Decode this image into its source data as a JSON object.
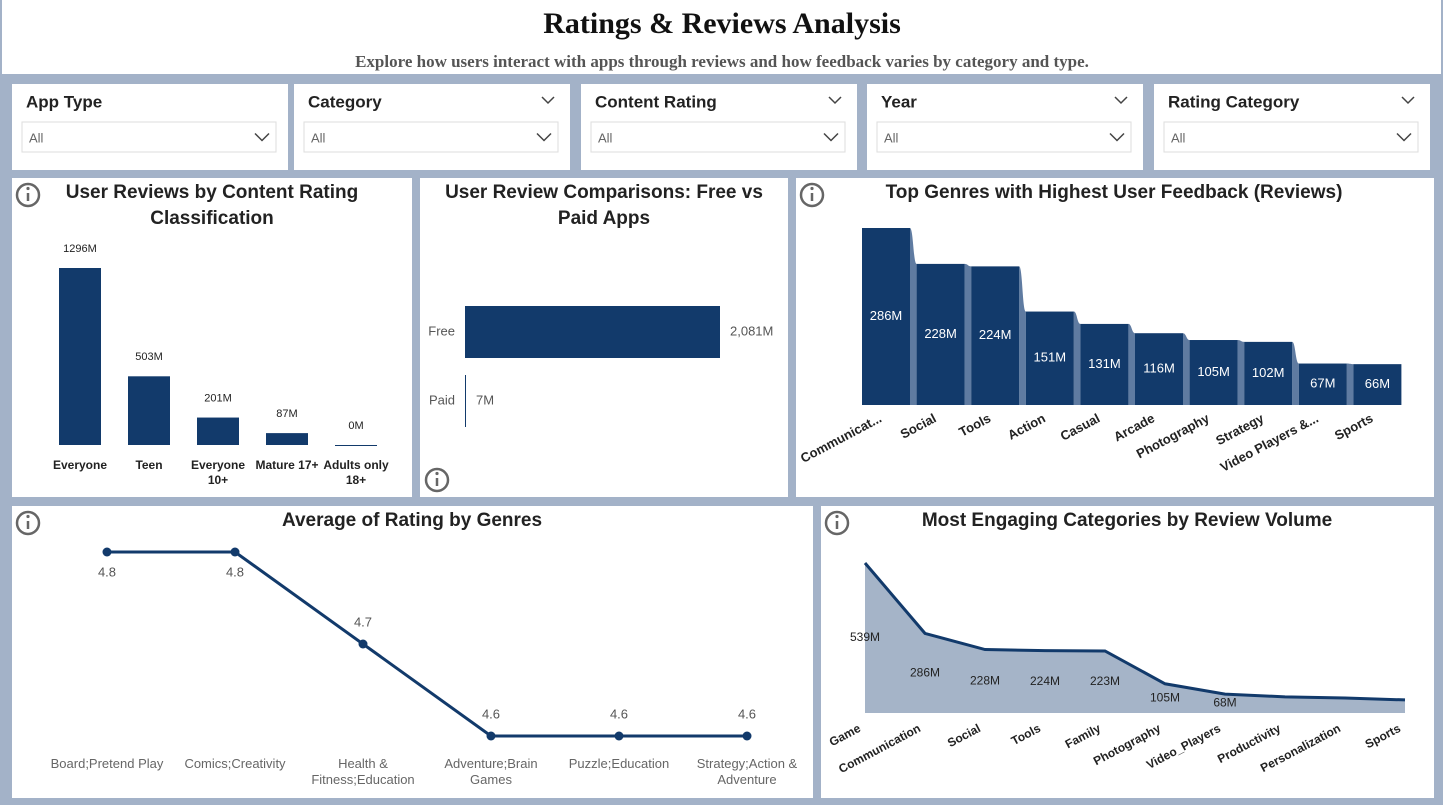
{
  "header": {
    "title": "Ratings & Reviews Analysis",
    "subtitle": "Explore how users interact with apps through reviews and how feedback varies by category and type."
  },
  "filters": [
    {
      "label": "App Type",
      "value": "All"
    },
    {
      "label": "Category",
      "value": "All"
    },
    {
      "label": "Content Rating",
      "value": "All"
    },
    {
      "label": "Year",
      "value": "All"
    },
    {
      "label": "Rating Category",
      "value": "All"
    }
  ],
  "chart_data": [
    {
      "type": "bar",
      "title": "User Reviews by Content Rating Classification",
      "categories": [
        "Everyone",
        "Teen",
        "Everyone 10+",
        "Mature 17+",
        "Adults only 18+"
      ],
      "values": [
        1296,
        503,
        201,
        87,
        0
      ],
      "value_labels": [
        "1296M",
        "503M",
        "201M",
        "87M",
        "0M"
      ],
      "color": "#123a6b"
    },
    {
      "type": "bar",
      "orientation": "horizontal",
      "title": "User Review Comparisons: Free vs Paid Apps",
      "categories": [
        "Free",
        "Paid"
      ],
      "values": [
        2081,
        7
      ],
      "value_labels": [
        "2,081M",
        "7M"
      ],
      "color": "#123a6b"
    },
    {
      "type": "bar",
      "connectors": true,
      "title": "Top Genres with Highest User Feedback (Reviews)",
      "categories": [
        "Communicat...",
        "Social",
        "Tools",
        "Action",
        "Casual",
        "Arcade",
        "Photography",
        "Strategy",
        "Video Players &...",
        "Sports"
      ],
      "values": [
        286,
        228,
        224,
        151,
        131,
        116,
        105,
        102,
        67,
        66
      ],
      "value_labels": [
        "286M",
        "228M",
        "224M",
        "151M",
        "131M",
        "116M",
        "105M",
        "102M",
        "67M",
        "66M"
      ],
      "color": "#123a6b",
      "connector_color": "#5f7ba1"
    },
    {
      "type": "line",
      "title": "Average of Rating by Genres",
      "categories": [
        "Board;Pretend Play",
        "Comics;Creativity",
        "Health & Fitness;Education",
        "Adventure;Brain Games",
        "Puzzle;Education",
        "Strategy;Action & Adventure"
      ],
      "values": [
        4.8,
        4.8,
        4.7,
        4.6,
        4.6,
        4.6
      ],
      "color": "#123a6b"
    },
    {
      "type": "area",
      "title": "Most Engaging Categories by Review Volume",
      "categories": [
        "Game",
        "Communication",
        "Social",
        "Tools",
        "Family",
        "Photography",
        "Video_Players",
        "Productivity",
        "Personalization",
        "Sports"
      ],
      "values": [
        539,
        286,
        228,
        224,
        223,
        105,
        68,
        58,
        54,
        47
      ],
      "value_labels": [
        "539M",
        "286M",
        "228M",
        "224M",
        "223M",
        "105M",
        "68M",
        null,
        null,
        null
      ],
      "color": "#123a6b",
      "fill": "#a5b4c8"
    }
  ]
}
